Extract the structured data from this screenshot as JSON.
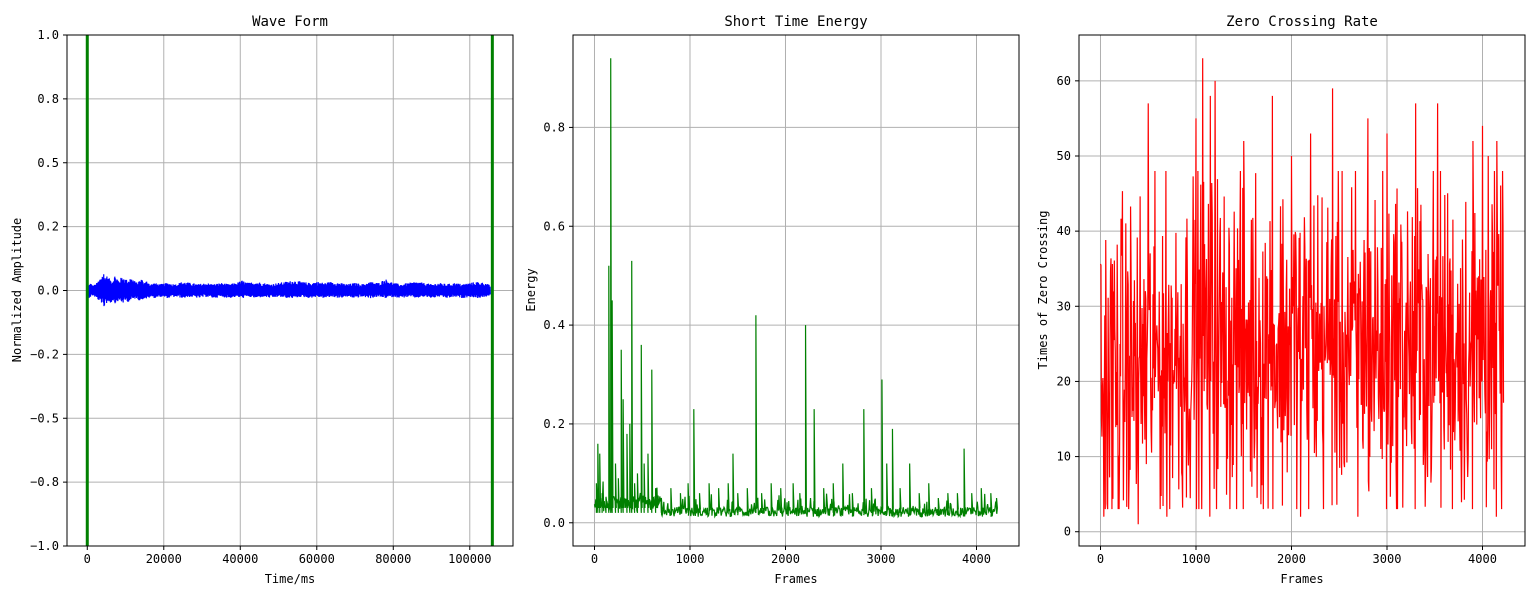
{
  "colors": {
    "waveform": "#0000ff",
    "energy": "#008000",
    "zcr": "#ff0000",
    "markers": "#008000",
    "grid": "#b0b0b0"
  },
  "chart_data": [
    {
      "type": "line",
      "title": "Wave Form",
      "xlabel": "Time/ms",
      "ylabel": "Normalized Amplitude",
      "xlim": [
        -5300,
        111300
      ],
      "ylim": [
        -1.0,
        1.0
      ],
      "xticks": [
        0,
        20000,
        40000,
        60000,
        80000,
        100000
      ],
      "xtick_labels": [
        "0",
        "20000",
        "40000",
        "60000",
        "80000",
        "100000"
      ],
      "yticks": [
        -1.0,
        -0.75,
        -0.5,
        -0.25,
        0.0,
        0.25,
        0.5,
        0.75,
        1.0
      ],
      "ytick_labels": [
        "−1.0",
        "−0.8",
        "−0.5",
        "−0.2",
        "0.0",
        "0.2",
        "0.5",
        "0.8",
        "1.0"
      ],
      "grid": true,
      "vertical_markers": [
        0,
        105900
      ],
      "series": [
        {
          "color": "#0000ff",
          "x": [
            300,
            800,
            1500,
            2200,
            3000,
            3800,
            4300,
            4600,
            5000,
            5500,
            6000,
            6600,
            7200,
            7800,
            8200,
            8800,
            9400,
            10000,
            10600,
            11200,
            12000,
            12800,
            13600,
            14400,
            15000,
            15600,
            16500,
            17500,
            19000,
            21000,
            23000,
            25000,
            27000,
            29000,
            31000,
            33000,
            35000,
            37000,
            39000,
            40500,
            42000,
            44000,
            46000,
            48000,
            50000,
            52000,
            54000,
            56000,
            58000,
            60000,
            62000,
            64000,
            66000,
            68000,
            70000,
            72000,
            74000,
            76000,
            78000,
            80000,
            82000,
            84000,
            86000,
            88000,
            90000,
            92000,
            94000,
            96000,
            98000,
            100000,
            102000,
            104000,
            105400
          ],
          "y_high": [
            0.02,
            0.03,
            0.02,
            0.025,
            0.04,
            0.06,
            0.07,
            0.05,
            0.06,
            0.05,
            0.045,
            0.04,
            0.06,
            0.05,
            0.04,
            0.05,
            0.055,
            0.045,
            0.04,
            0.05,
            0.045,
            0.03,
            0.04,
            0.045,
            0.03,
            0.04,
            0.025,
            0.03,
            0.025,
            0.03,
            0.025,
            0.035,
            0.03,
            0.025,
            0.03,
            0.025,
            0.03,
            0.025,
            0.03,
            0.04,
            0.03,
            0.035,
            0.03,
            0.025,
            0.03,
            0.035,
            0.04,
            0.035,
            0.03,
            0.035,
            0.03,
            0.035,
            0.03,
            0.025,
            0.03,
            0.025,
            0.035,
            0.03,
            0.045,
            0.03,
            0.025,
            0.03,
            0.035,
            0.03,
            0.025,
            0.03,
            0.025,
            0.03,
            0.025,
            0.03,
            0.035,
            0.03,
            0.02
          ],
          "y_low": [
            -0.03,
            -0.025,
            -0.02,
            -0.03,
            -0.04,
            -0.05,
            -0.08,
            -0.04,
            -0.05,
            -0.045,
            -0.05,
            -0.04,
            -0.05,
            -0.045,
            -0.04,
            -0.045,
            -0.05,
            -0.04,
            -0.045,
            -0.04,
            -0.035,
            -0.03,
            -0.04,
            -0.035,
            -0.03,
            -0.035,
            -0.025,
            -0.03,
            -0.025,
            -0.03,
            -0.025,
            -0.03,
            -0.025,
            -0.03,
            -0.025,
            -0.03,
            -0.025,
            -0.03,
            -0.025,
            -0.03,
            -0.025,
            -0.03,
            -0.025,
            -0.03,
            -0.025,
            -0.03,
            -0.03,
            -0.025,
            -0.03,
            -0.025,
            -0.03,
            -0.025,
            -0.03,
            -0.025,
            -0.03,
            -0.025,
            -0.03,
            -0.025,
            -0.03,
            -0.025,
            -0.03,
            -0.025,
            -0.03,
            -0.025,
            -0.03,
            -0.025,
            -0.03,
            -0.025,
            -0.03,
            -0.025,
            -0.03,
            -0.025,
            -0.02
          ]
        }
      ]
    },
    {
      "type": "line",
      "title": "Short Time Energy",
      "xlabel": "Frames",
      "ylabel": "Energy",
      "xlim": [
        -225,
        4445
      ],
      "ylim": [
        -0.047,
        0.987
      ],
      "xticks": [
        0,
        1000,
        2000,
        3000,
        4000
      ],
      "xtick_labels": [
        "0",
        "1000",
        "2000",
        "3000",
        "4000"
      ],
      "yticks": [
        0.0,
        0.2,
        0.4,
        0.6,
        0.8
      ],
      "ytick_labels": [
        "0.0",
        "0.2",
        "0.4",
        "0.6",
        "0.8"
      ],
      "grid": true,
      "series": [
        {
          "color": "#008000",
          "peaks": [
            [
              20,
              0.08
            ],
            [
              35,
              0.16
            ],
            [
              55,
              0.14
            ],
            [
              80,
              0.06
            ],
            [
              120,
              0.05
            ],
            [
              150,
              0.52
            ],
            [
              170,
              0.94
            ],
            [
              185,
              0.45
            ],
            [
              220,
              0.12
            ],
            [
              250,
              0.09
            ],
            [
              280,
              0.35
            ],
            [
              300,
              0.25
            ],
            [
              340,
              0.18
            ],
            [
              370,
              0.2
            ],
            [
              390,
              0.53
            ],
            [
              420,
              0.08
            ],
            [
              450,
              0.1
            ],
            [
              490,
              0.36
            ],
            [
              520,
              0.12
            ],
            [
              560,
              0.14
            ],
            [
              600,
              0.31
            ],
            [
              640,
              0.07
            ],
            [
              700,
              0.05
            ],
            [
              800,
              0.07
            ],
            [
              900,
              0.06
            ],
            [
              980,
              0.08
            ],
            [
              1040,
              0.23
            ],
            [
              1100,
              0.06
            ],
            [
              1200,
              0.08
            ],
            [
              1300,
              0.07
            ],
            [
              1400,
              0.08
            ],
            [
              1450,
              0.14
            ],
            [
              1500,
              0.06
            ],
            [
              1600,
              0.07
            ],
            [
              1690,
              0.42
            ],
            [
              1750,
              0.06
            ],
            [
              1850,
              0.08
            ],
            [
              1950,
              0.07
            ],
            [
              2080,
              0.08
            ],
            [
              2150,
              0.06
            ],
            [
              2210,
              0.4
            ],
            [
              2300,
              0.23
            ],
            [
              2400,
              0.07
            ],
            [
              2500,
              0.08
            ],
            [
              2600,
              0.12
            ],
            [
              2700,
              0.06
            ],
            [
              2820,
              0.23
            ],
            [
              2900,
              0.07
            ],
            [
              3010,
              0.29
            ],
            [
              3060,
              0.12
            ],
            [
              3120,
              0.19
            ],
            [
              3200,
              0.07
            ],
            [
              3300,
              0.12
            ],
            [
              3400,
              0.06
            ],
            [
              3500,
              0.08
            ],
            [
              3600,
              0.05
            ],
            [
              3700,
              0.06
            ],
            [
              3800,
              0.06
            ],
            [
              3870,
              0.15
            ],
            [
              3950,
              0.06
            ],
            [
              4050,
              0.07
            ],
            [
              4150,
              0.06
            ],
            [
              4210,
              0.05
            ]
          ]
        }
      ]
    },
    {
      "type": "line",
      "title": "Zero Crossing Rate",
      "xlabel": "Frames",
      "ylabel": "Times of Zero Crossing",
      "xlim": [
        -225,
        4445
      ],
      "ylim": [
        -1.9,
        66.1
      ],
      "xticks": [
        0,
        1000,
        2000,
        3000,
        4000
      ],
      "xtick_labels": [
        "0",
        "1000",
        "2000",
        "3000",
        "4000"
      ],
      "yticks": [
        0,
        10,
        20,
        30,
        40,
        50,
        60
      ],
      "ytick_labels": [
        "0",
        "10",
        "20",
        "30",
        "40",
        "50",
        "60"
      ],
      "grid": true,
      "series": [
        {
          "color": "#ff0000",
          "x_range": [
            0,
            4220
          ],
          "peaks": [
            [
              500,
              57
            ],
            [
              1000,
              55
            ],
            [
              1070,
              63
            ],
            [
              1150,
              58
            ],
            [
              1200,
              60
            ],
            [
              1500,
              52
            ],
            [
              1800,
              58
            ],
            [
              2000,
              50
            ],
            [
              2200,
              53
            ],
            [
              2430,
              59
            ],
            [
              2800,
              55
            ],
            [
              3000,
              53
            ],
            [
              3300,
              57
            ],
            [
              3530,
              57
            ],
            [
              3900,
              52
            ],
            [
              4000,
              54
            ],
            [
              4060,
              50
            ],
            [
              4150,
              52
            ]
          ],
          "troughs": [
            [
              40,
              2
            ],
            [
              80,
              3
            ],
            [
              400,
              1
            ],
            [
              700,
              2
            ],
            [
              1150,
              2
            ],
            [
              1500,
              3
            ],
            [
              2100,
              2
            ],
            [
              2700,
              2
            ],
            [
              3000,
              3
            ],
            [
              3300,
              3
            ],
            [
              3900,
              3
            ],
            [
              4150,
              2
            ]
          ]
        }
      ]
    }
  ]
}
